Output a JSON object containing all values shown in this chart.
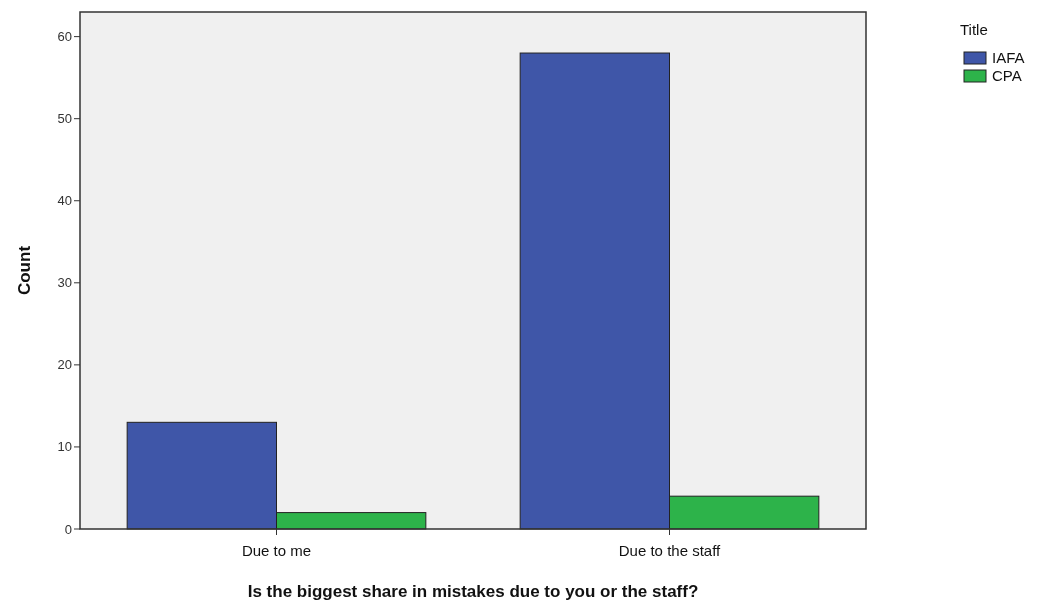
{
  "chart_data": {
    "type": "bar",
    "xlabel": "Is the biggest share in mistakes due to you or the staff?",
    "ylabel": "Count",
    "legend_title": "Title",
    "categories": [
      "Due to me",
      "Due to the staff"
    ],
    "series": [
      {
        "name": "IAFA",
        "color": "#3f56a8",
        "values": [
          13,
          58
        ]
      },
      {
        "name": "CPA",
        "color": "#2db34a",
        "values": [
          2,
          4
        ]
      }
    ],
    "ylim": [
      0,
      63
    ],
    "yticks": [
      0,
      10,
      20,
      30,
      40,
      50,
      60
    ],
    "grid": false,
    "legend": "top right"
  }
}
